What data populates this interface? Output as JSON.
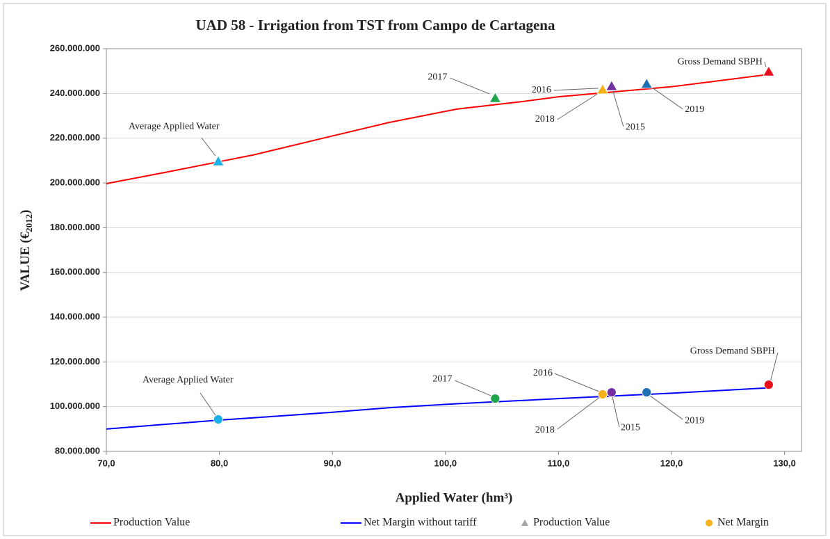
{
  "chart_data": {
    "type": "line",
    "title": "UAD 58 - Irrigation from TST from Campo de Cartagena",
    "x_label": "Applied Water (hm³)",
    "y_label": [
      "VALUE (€",
      "2012",
      ")"
    ],
    "xlim": [
      70,
      131.5
    ],
    "xticks": [
      {
        "value": 70,
        "label": "70,0"
      },
      {
        "value": 80,
        "label": "80,0"
      },
      {
        "value": 90,
        "label": "90,0"
      },
      {
        "value": 100,
        "label": "100,0"
      },
      {
        "value": 110,
        "label": "110,0"
      },
      {
        "value": 120,
        "label": "120,0"
      },
      {
        "value": 130,
        "label": "130,0"
      }
    ],
    "ylim": [
      80000000,
      260000000
    ],
    "yticks": [
      {
        "value": 80000000,
        "label": "80.000.000"
      },
      {
        "value": 100000000,
        "label": "100.000.000"
      },
      {
        "value": 120000000,
        "label": "120.000.000"
      },
      {
        "value": 140000000,
        "label": "140.000.000"
      },
      {
        "value": 160000000,
        "label": "160.000.000"
      },
      {
        "value": 180000000,
        "label": "180.000.000"
      },
      {
        "value": 200000000,
        "label": "200.000.000"
      },
      {
        "value": 220000000,
        "label": "220.000.000"
      },
      {
        "value": 240000000,
        "label": "240.000.000"
      },
      {
        "value": 260000000,
        "label": "260.000.000"
      }
    ],
    "grid": true,
    "x": [
      70,
      75,
      80,
      83,
      90,
      95,
      101,
      107,
      110,
      120,
      128.6
    ],
    "series": [
      {
        "name": "Production Value",
        "color": "#ff0000",
        "values": [
          199700000,
          204500000,
          209500000,
          212500000,
          221000000,
          227000000,
          233000000,
          236500000,
          238500000,
          243000000,
          248500000
        ]
      },
      {
        "name": "Net Margin without tariff",
        "color": "#0000ff",
        "values": [
          90000000,
          92000000,
          94000000,
          95000000,
          97500000,
          99500000,
          101300000,
          102800000,
          103600000,
          106000000,
          108400000
        ]
      }
    ],
    "points": [
      {
        "name": "Production Value",
        "marker": "triangle",
        "color": "#a6a6a6",
        "labels": [
          "Average Applied Water",
          "2017",
          "2016",
          "2018",
          "2015",
          "2019",
          "Gross Demand SBPH"
        ],
        "x": [
          79.9,
          104.4,
          113.9,
          113.9,
          114.7,
          117.8,
          128.6
        ],
        "values": [
          209600000,
          237900000,
          241700000,
          241700000,
          243200000,
          244200000,
          249700000
        ],
        "colors": [
          "#1ab0e8",
          "#1ea64c",
          "#f7b21a",
          "#f7b21a",
          "#7030a0",
          "#1f6fb5",
          "#e8111b"
        ]
      },
      {
        "name": "Net Margin",
        "marker": "circle",
        "color": "#f7b21a",
        "labels": [
          "Average Applied Water",
          "2017",
          "2016",
          "2018",
          "2015",
          "2019",
          "Gross Demand SBPH"
        ],
        "x": [
          79.9,
          104.4,
          113.9,
          113.9,
          114.7,
          117.8,
          128.6
        ],
        "values": [
          94300000,
          103600000,
          105500000,
          105500000,
          106400000,
          106400000,
          109800000
        ],
        "colors": [
          "#1ab0e8",
          "#1ea64c",
          "#f7b21a",
          "#f7b21a",
          "#7030a0",
          "#1f6fb5",
          "#e8111b"
        ]
      }
    ]
  }
}
